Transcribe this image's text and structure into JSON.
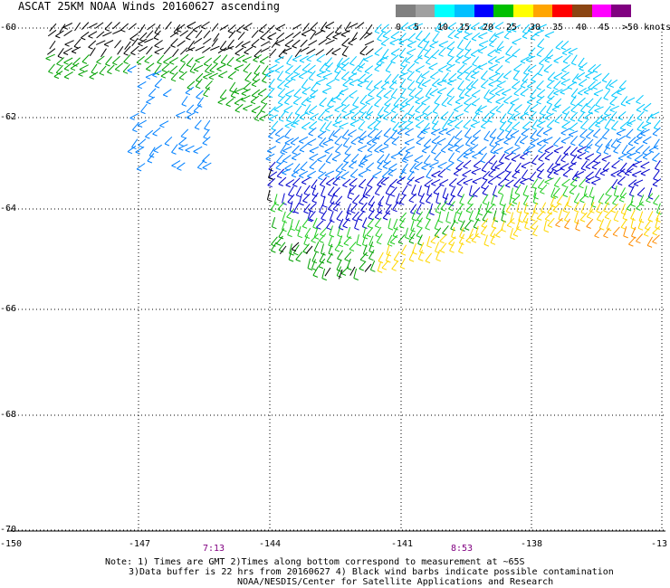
{
  "title": "ASCAT 25KM NOAA Winds 20160627 ascending",
  "legend": {
    "labels": [
      "0",
      "5",
      "10",
      "15",
      "20",
      "25",
      "30",
      "35",
      "40",
      "45",
      ">50 knots"
    ],
    "colors": [
      "#808080",
      "#a0a0a0",
      "#00ffff",
      "#00c0ff",
      "#0000ff",
      "#00c000",
      "#ffff00",
      "#ffa500",
      "#ff0000",
      "#8b4513",
      "#ff00ff",
      "#800080"
    ]
  },
  "lat_labels": [
    "-60",
    "-62",
    "-64",
    "-66",
    "-68",
    "-70"
  ],
  "lon_labels": [
    "-150",
    "-147",
    "-144",
    "-141",
    "-138",
    "-13"
  ],
  "times": [
    "7:13",
    "8:53"
  ],
  "notes": {
    "line1": "Note: 1) Times are GMT 2)Times along bottom correspond to measurement at ~65S",
    "line2": "3)Data buffer is 22 hrs from 20160627 4) Black wind barbs indicate possible contamination",
    "line3": "NOAA/NESDIS/Center for Satellite Applications and Research"
  }
}
